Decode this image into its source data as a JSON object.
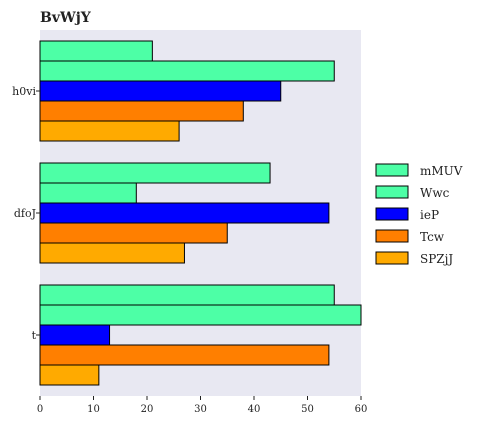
{
  "chart_data": {
    "type": "bar",
    "orientation": "horizontal",
    "title": "BvWjY",
    "xlabel": "",
    "ylabel": "",
    "xlim": [
      0,
      60
    ],
    "x_ticks": [
      "0",
      "10",
      "20",
      "30",
      "40",
      "50",
      "60"
    ],
    "categories": [
      "h0vi",
      "dfoJ",
      "t"
    ],
    "series": [
      {
        "name": "mMUV",
        "color": "#4dffa6",
        "values": [
          21,
          43,
          55
        ]
      },
      {
        "name": "Wwc",
        "color": "#4dffa6",
        "values": [
          55,
          18,
          60
        ]
      },
      {
        "name": "ieP",
        "color": "#0000ff",
        "values": [
          45,
          54,
          13
        ]
      },
      {
        "name": "Tcw",
        "color": "#ff7f00",
        "values": [
          38,
          35,
          54
        ]
      },
      {
        "name": "SPZjJ",
        "color": "#ffaa00",
        "values": [
          26,
          27,
          11
        ]
      }
    ],
    "legend_position": "right",
    "background": "#e8e8f2",
    "grid": false
  }
}
